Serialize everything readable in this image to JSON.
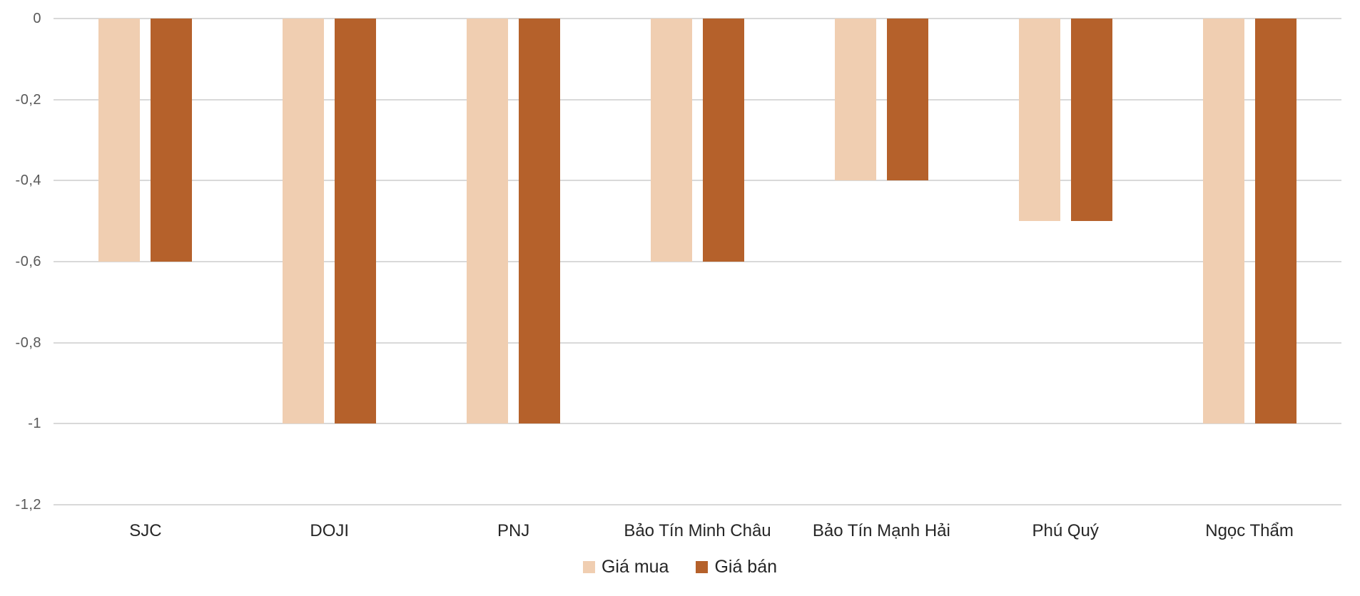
{
  "chart_data": {
    "type": "bar",
    "orientation": "vertical",
    "title": "",
    "xlabel": "",
    "ylabel": "",
    "categories": [
      "SJC",
      "DOJI",
      "PNJ",
      "Bảo Tín Minh Châu",
      "Bảo Tín Mạnh Hải",
      "Phú Quý",
      "Ngọc Thẩm"
    ],
    "series": [
      {
        "name": "Giá mua",
        "color": "#F0CEB1",
        "values": [
          -0.6,
          -1,
          -1,
          -0.6,
          -0.4,
          -0.5,
          -1
        ]
      },
      {
        "name": "Giá bán",
        "color": "#B5612B",
        "values": [
          -0.6,
          -1,
          -1,
          -0.6,
          -0.4,
          -0.5,
          -1
        ]
      }
    ],
    "ylim": [
      -1.2,
      0
    ],
    "yticks": [
      0,
      -0.2,
      -0.4,
      -0.6,
      -0.8,
      -1,
      -1.2
    ],
    "ytick_labels": [
      "0",
      "-0,2",
      "-0,4",
      "-0,6",
      "-0,8",
      "-1",
      "-1,2"
    ],
    "grid": true,
    "legend_position": "bottom-center",
    "colors": {
      "background": "#FFFFFF",
      "gridline": "#D9D9D9",
      "tick_label": "#595959",
      "category_label": "#262626",
      "legend_label": "#262626"
    }
  }
}
